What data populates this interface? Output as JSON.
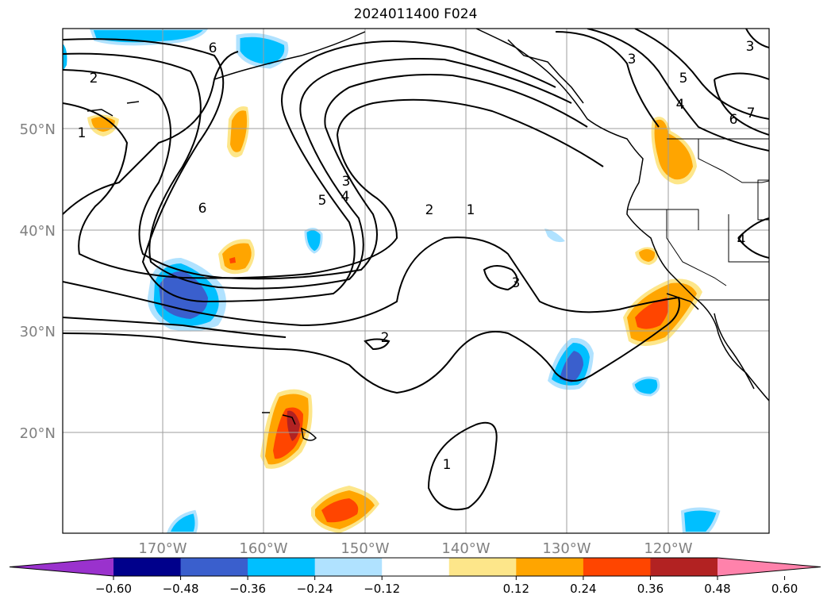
{
  "title": "2024011400 F024",
  "map": {
    "lat_ticks": [
      "50°N",
      "40°N",
      "30°N",
      "20°N"
    ],
    "lon_ticks": [
      "170°W",
      "160°W",
      "150°W",
      "140°W",
      "130°W",
      "120°W"
    ],
    "contour_labels": [
      "2",
      "1",
      "6",
      "6",
      "5",
      "4",
      "3",
      "2",
      "1",
      "3",
      "2",
      "1",
      "3",
      "5",
      "4",
      "6",
      "7",
      "4",
      "3"
    ],
    "colors": {
      "coastline": "#000000",
      "gridline": "#9e9e9e",
      "contour": "#000000"
    }
  },
  "colorbar": {
    "ticks": [
      "−0.60",
      "−0.48",
      "−0.36",
      "−0.24",
      "−0.12",
      "0.12",
      "0.24",
      "0.36",
      "0.48",
      "0.60"
    ],
    "colors": [
      "#9a32cd",
      "#00008b",
      "#3a5fcd",
      "#00bfff",
      "#b0e2ff",
      "#ffffff",
      "#fde68a",
      "#ffa500",
      "#ff4500",
      "#b22222",
      "#ff82ab"
    ]
  }
}
